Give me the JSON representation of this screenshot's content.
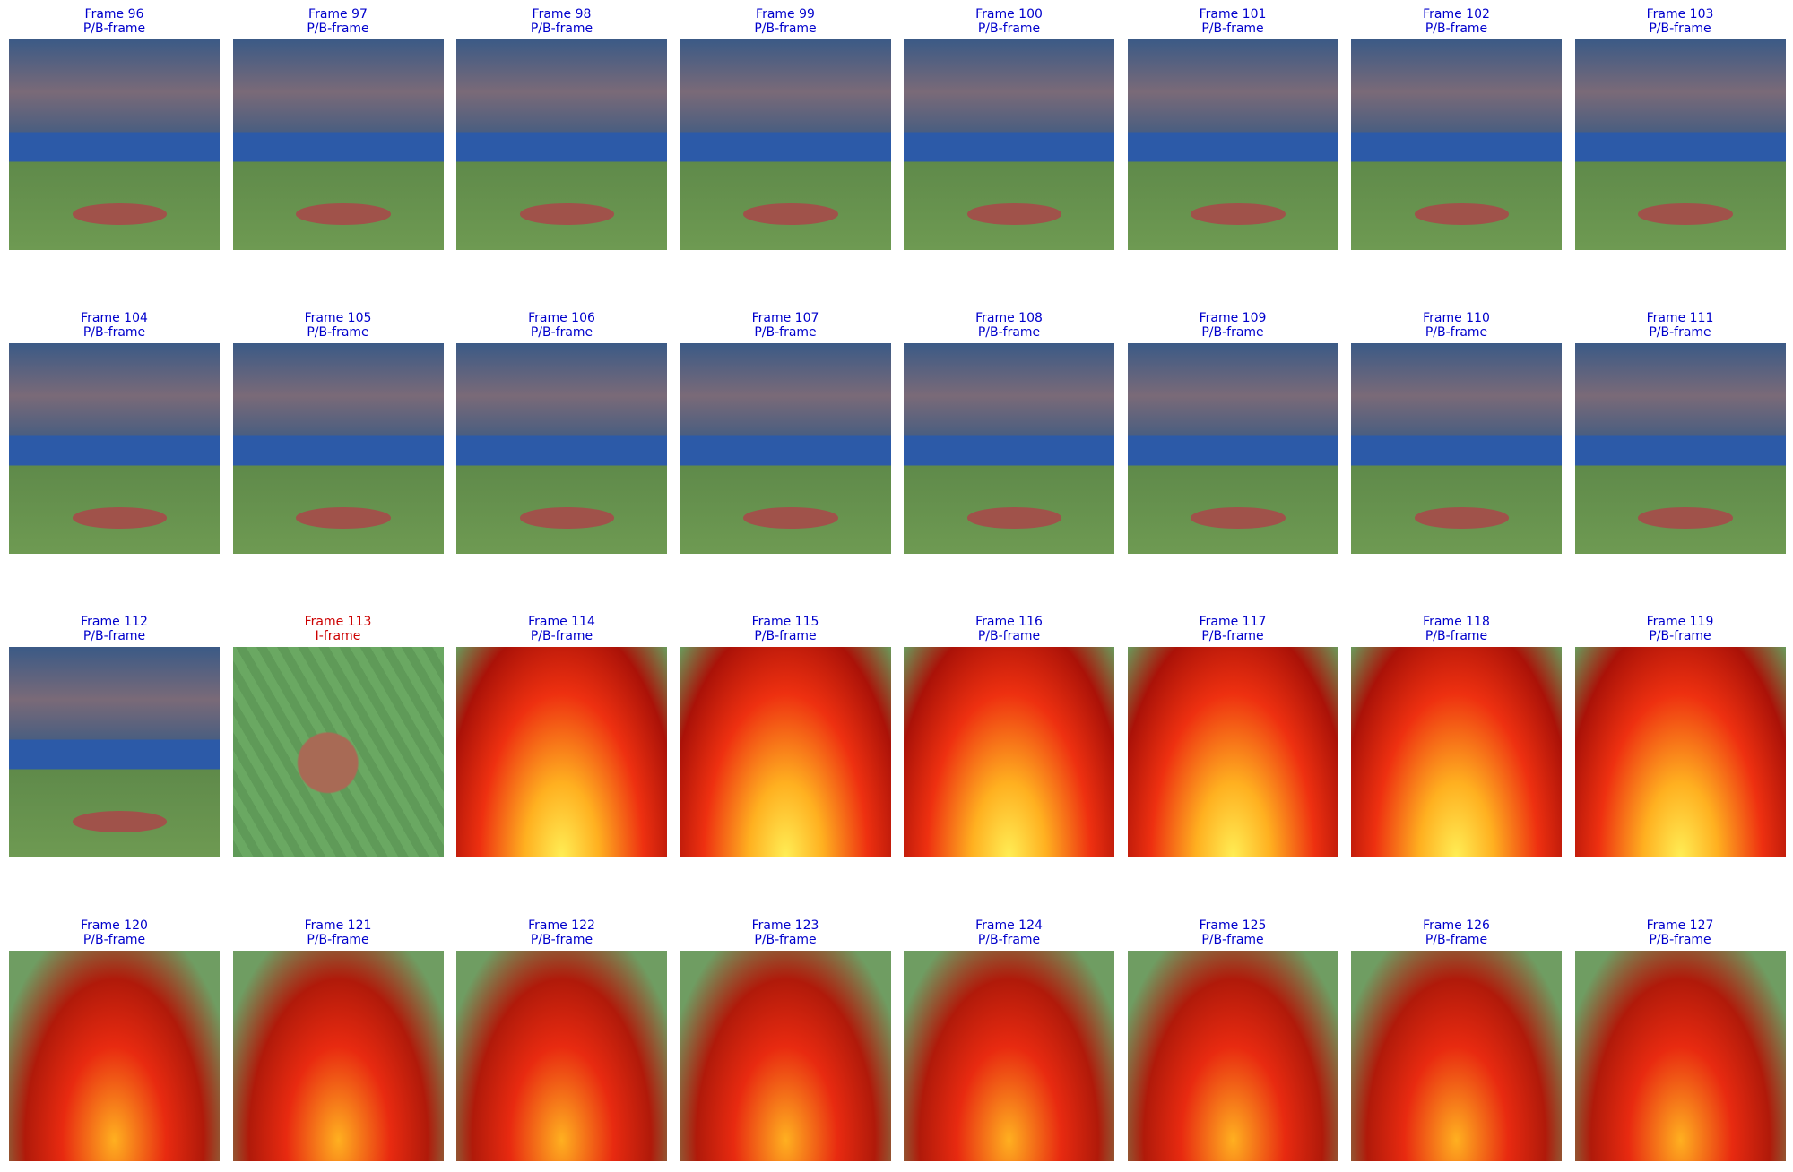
{
  "frames": [
    {
      "title": "Frame 96",
      "type": "P/B-frame",
      "color": "#0000cc"
    },
    {
      "title": "Frame 97",
      "type": "P/B-frame",
      "color": "#0000cc"
    },
    {
      "title": "Frame 98",
      "type": "P/B-frame",
      "color": "#0000cc"
    },
    {
      "title": "Frame 99",
      "type": "P/B-frame",
      "color": "#0000cc"
    },
    {
      "title": "Frame 100",
      "type": "P/B-frame",
      "color": "#0000cc"
    },
    {
      "title": "Frame 101",
      "type": "P/B-frame",
      "color": "#0000cc"
    },
    {
      "title": "Frame 102",
      "type": "P/B-frame",
      "color": "#0000cc"
    },
    {
      "title": "Frame 103",
      "type": "P/B-frame",
      "color": "#0000cc"
    },
    {
      "title": "Frame 104",
      "type": "P/B-frame",
      "color": "#0000cc"
    },
    {
      "title": "Frame 105",
      "type": "P/B-frame",
      "color": "#0000cc"
    },
    {
      "title": "Frame 106",
      "type": "P/B-frame",
      "color": "#0000cc"
    },
    {
      "title": "Frame 107",
      "type": "P/B-frame",
      "color": "#0000cc"
    },
    {
      "title": "Frame 108",
      "type": "P/B-frame",
      "color": "#0000cc"
    },
    {
      "title": "Frame 109",
      "type": "P/B-frame",
      "color": "#0000cc"
    },
    {
      "title": "Frame 110",
      "type": "P/B-frame",
      "color": "#0000cc"
    },
    {
      "title": "Frame 111",
      "type": "P/B-frame",
      "color": "#0000cc"
    },
    {
      "title": "Frame 112",
      "type": "P/B-frame",
      "color": "#0000cc"
    },
    {
      "title": "Frame 113",
      "type": "I-frame",
      "color": "#cc0000"
    },
    {
      "title": "Frame 114",
      "type": "P/B-frame",
      "color": "#0000cc"
    },
    {
      "title": "Frame 115",
      "type": "P/B-frame",
      "color": "#0000cc"
    },
    {
      "title": "Frame 116",
      "type": "P/B-frame",
      "color": "#0000cc"
    },
    {
      "title": "Frame 117",
      "type": "P/B-frame",
      "color": "#0000cc"
    },
    {
      "title": "Frame 118",
      "type": "P/B-frame",
      "color": "#0000cc"
    },
    {
      "title": "Frame 119",
      "type": "P/B-frame",
      "color": "#0000cc"
    },
    {
      "title": "Frame 120",
      "type": "P/B-frame",
      "color": "#0000cc"
    },
    {
      "title": "Frame 121",
      "type": "P/B-frame",
      "color": "#0000cc"
    },
    {
      "title": "Frame 122",
      "type": "P/B-frame",
      "color": "#0000cc"
    },
    {
      "title": "Frame 123",
      "type": "P/B-frame",
      "color": "#0000cc"
    },
    {
      "title": "Frame 124",
      "type": "P/B-frame",
      "color": "#0000cc"
    },
    {
      "title": "Frame 125",
      "type": "P/B-frame",
      "color": "#0000cc"
    },
    {
      "title": "Frame 126",
      "type": "P/B-frame",
      "color": "#0000cc"
    },
    {
      "title": "Frame 127",
      "type": "P/B-frame",
      "color": "#0000cc"
    }
  ]
}
